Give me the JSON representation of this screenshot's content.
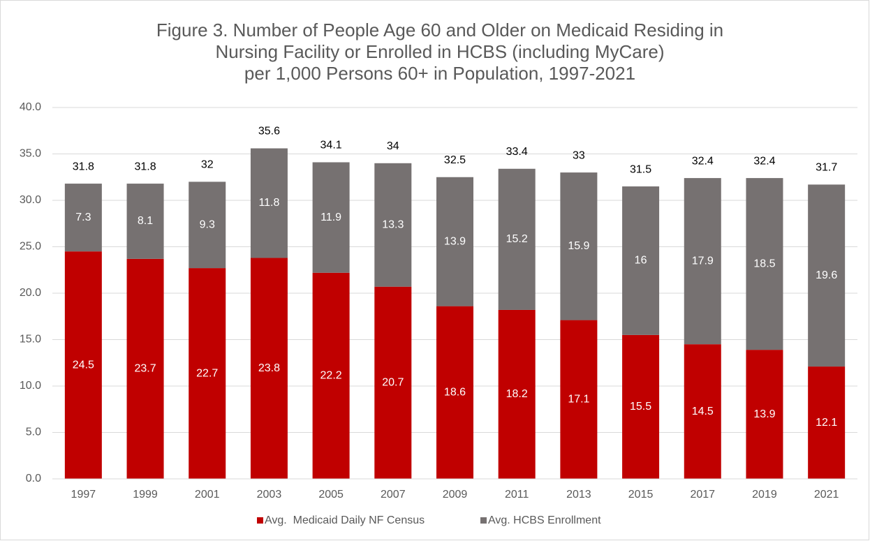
{
  "chart_data": {
    "type": "stacked_bar",
    "title": [
      "Figure 3. Number of People Age 60 and Older on Medicaid Residing in",
      "Nursing Facility or Enrolled in HCBS (including MyCare)",
      "per 1,000 Persons 60+ in Population, 1997-2021"
    ],
    "categories": [
      "1997",
      "1999",
      "2001",
      "2003",
      "2005",
      "2007",
      "2009",
      "2011",
      "2013",
      "2015",
      "2017",
      "2019",
      "2021"
    ],
    "series": [
      {
        "name": "Avg.  Medicaid Daily NF Census",
        "color": "#c00000",
        "values": [
          24.5,
          23.7,
          22.7,
          23.8,
          22.2,
          20.7,
          18.6,
          18.2,
          17.1,
          15.5,
          14.5,
          13.9,
          12.1
        ]
      },
      {
        "name": "Avg. HCBS Enrollment",
        "color": "#767171",
        "values": [
          7.3,
          8.1,
          9.3,
          11.8,
          11.9,
          13.3,
          13.9,
          15.2,
          15.9,
          16.0,
          17.9,
          18.5,
          19.6
        ]
      }
    ],
    "totals": [
      31.8,
      31.8,
      32.0,
      35.6,
      34.1,
      34.0,
      32.5,
      33.4,
      33.0,
      31.5,
      32.4,
      32.4,
      31.7
    ],
    "ylim": [
      0,
      40
    ],
    "yticks": [
      {
        "value": 0,
        "label": "0.0"
      },
      {
        "value": 5,
        "label": "5.0"
      },
      {
        "value": 10,
        "label": "10.0"
      },
      {
        "value": 15,
        "label": "15.0"
      },
      {
        "value": 20,
        "label": "20.0"
      },
      {
        "value": 25,
        "label": "25.0"
      },
      {
        "value": 30,
        "label": "30.0"
      },
      {
        "value": 35,
        "label": "35.0"
      },
      {
        "value": 40,
        "label": "40.0"
      }
    ],
    "grid": true,
    "legend": "bottom"
  }
}
